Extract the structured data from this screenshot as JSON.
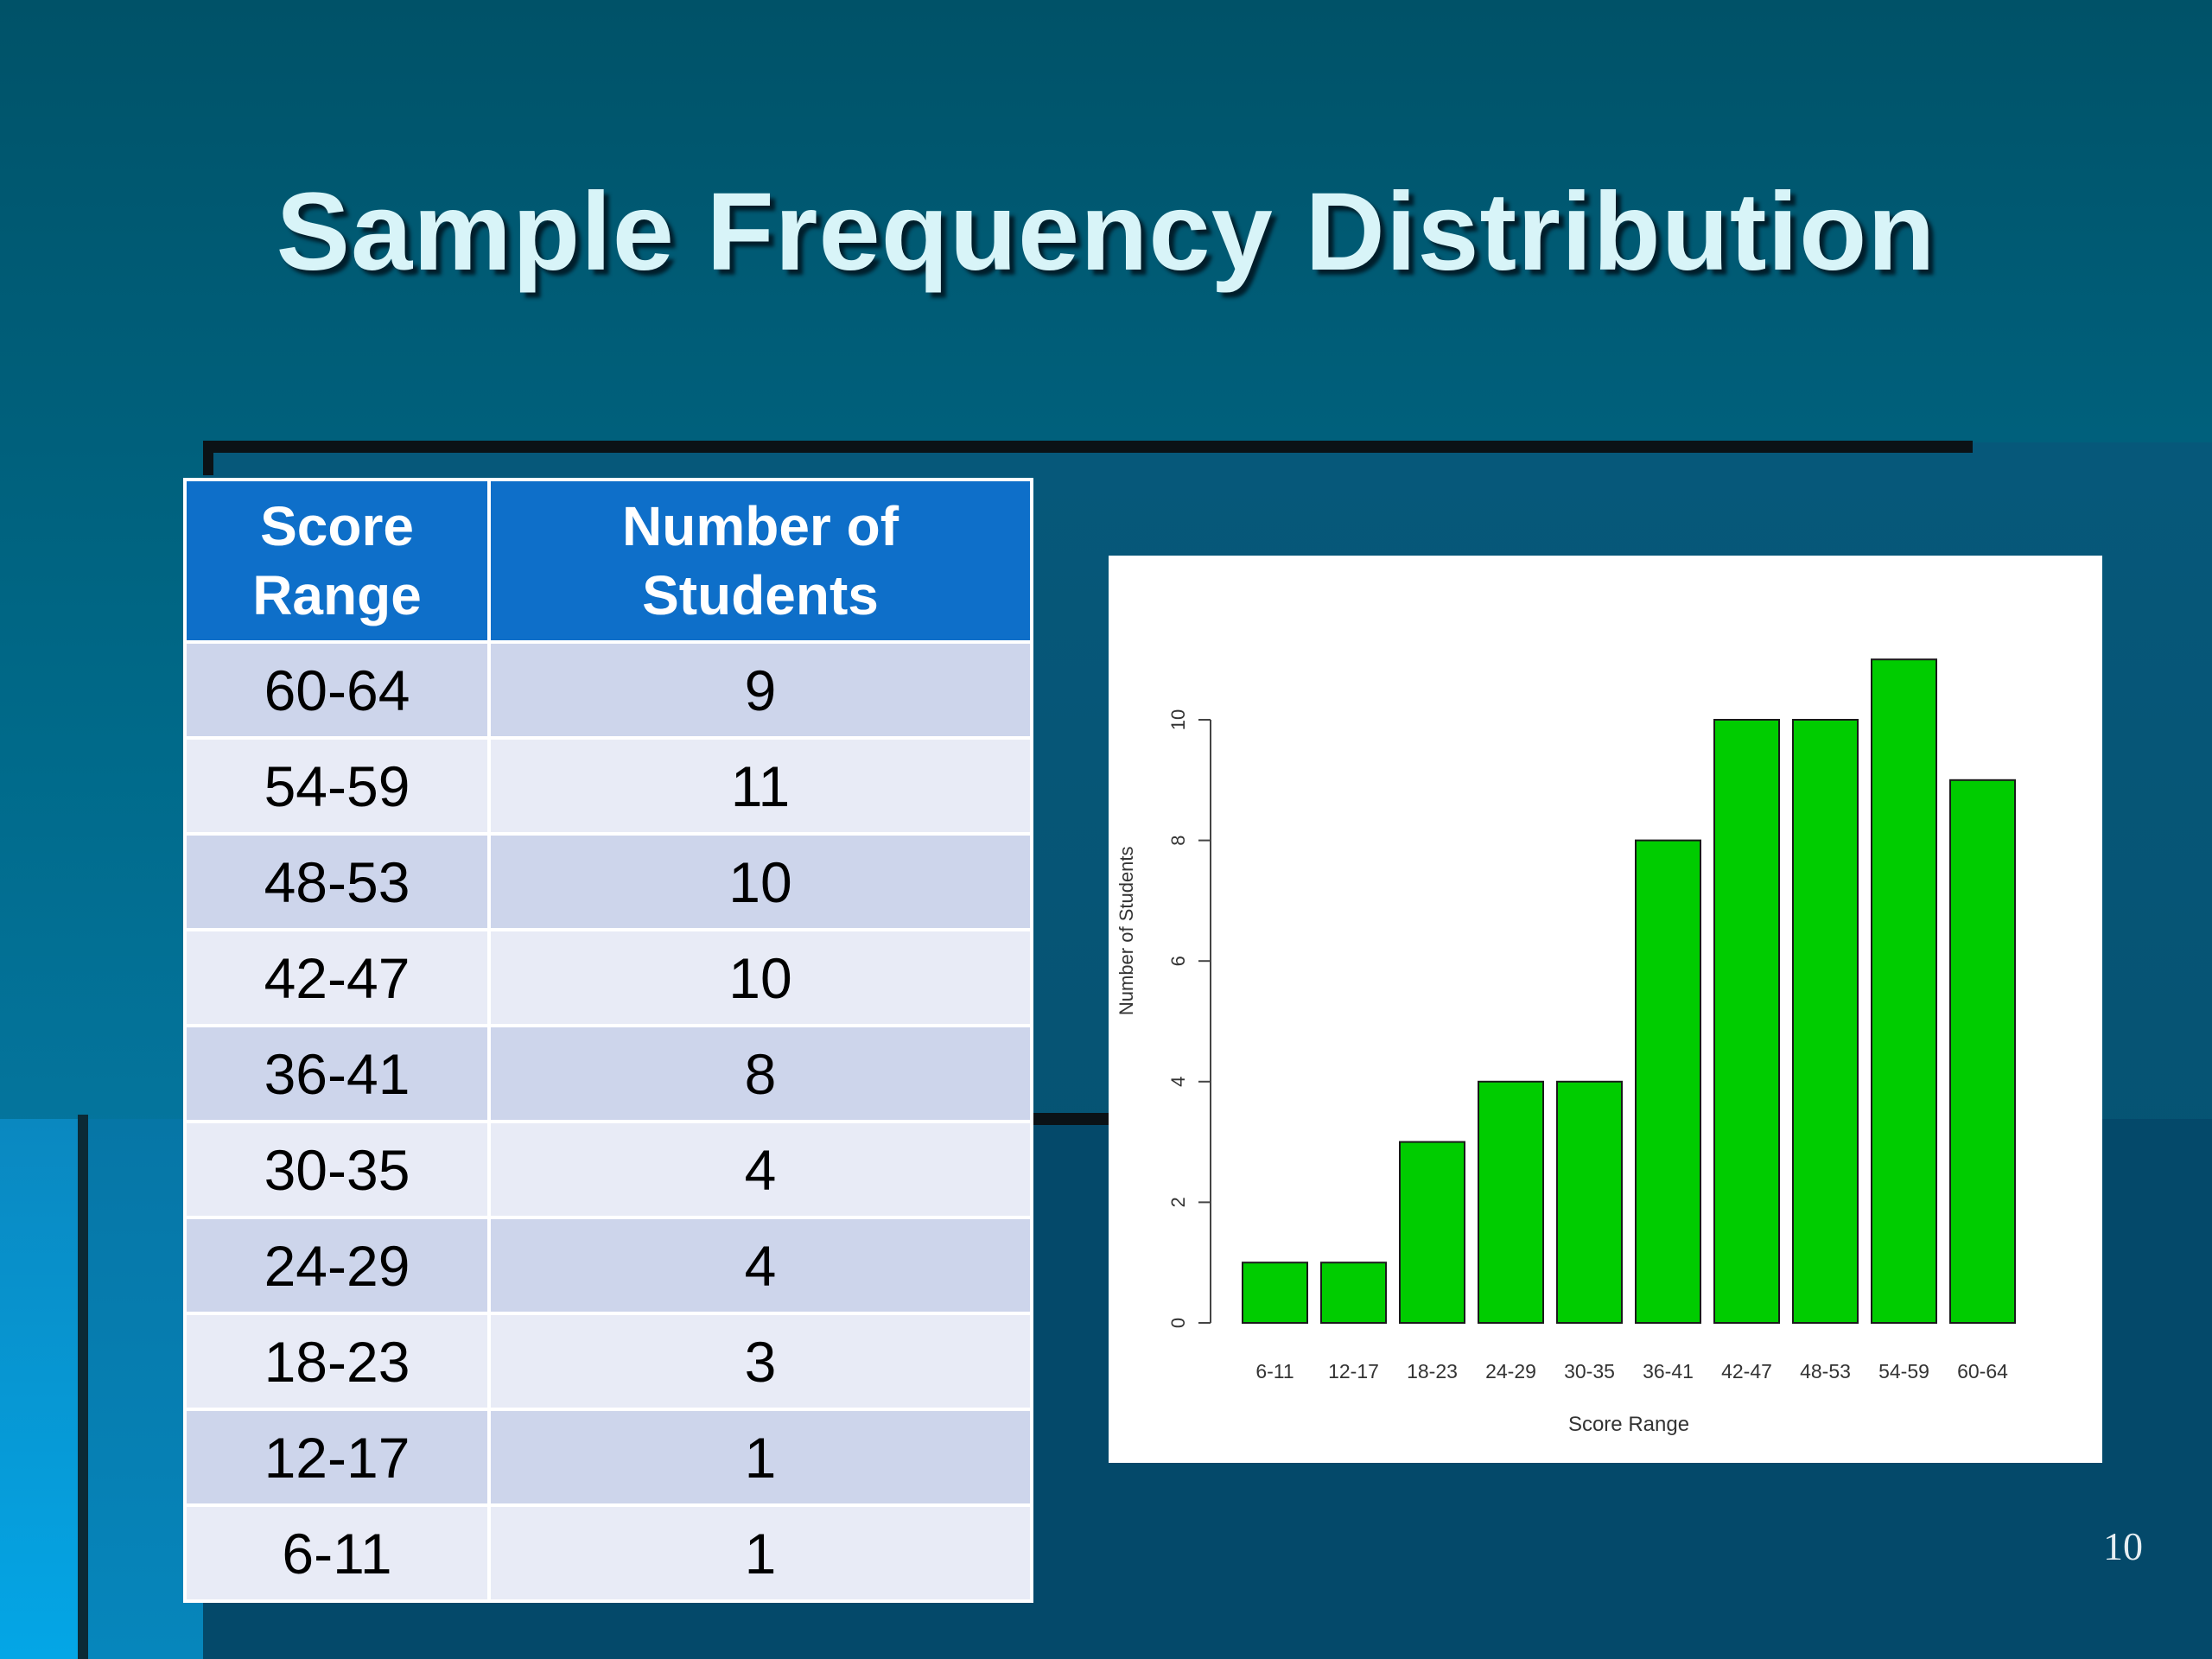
{
  "slide": {
    "title": "Sample Frequency Distribution",
    "page_number": "10"
  },
  "table": {
    "headers": [
      {
        "line1": "Score",
        "line2": "Range"
      },
      {
        "line1": "Number of",
        "line2": "Students"
      }
    ],
    "rows": [
      {
        "range": "60-64",
        "count": "9"
      },
      {
        "range": "54-59",
        "count": "11"
      },
      {
        "range": "48-53",
        "count": "10"
      },
      {
        "range": "42-47",
        "count": "10"
      },
      {
        "range": "36-41",
        "count": "8"
      },
      {
        "range": "30-35",
        "count": "4"
      },
      {
        "range": "24-29",
        "count": "4"
      },
      {
        "range": "18-23",
        "count": "3"
      },
      {
        "range": "12-17",
        "count": "1"
      },
      {
        "range": "6-11",
        "count": "1"
      }
    ]
  },
  "chart_data": {
    "type": "bar",
    "categories": [
      "6-11",
      "12-17",
      "18-23",
      "24-29",
      "30-35",
      "36-41",
      "42-47",
      "48-53",
      "54-59",
      "60-64"
    ],
    "values": [
      1,
      1,
      3,
      4,
      4,
      8,
      10,
      10,
      11,
      9
    ],
    "title": "",
    "xlabel": "Score Range",
    "ylabel": "Number of Students",
    "ylim": [
      0,
      11
    ],
    "yticks": [
      0,
      2,
      4,
      6,
      8,
      10
    ],
    "bar_color": "#00cc00",
    "grid": false,
    "legend": "none"
  },
  "colors": {
    "table_header": "#0e6fc9",
    "row_dark": "#cdd5eb",
    "row_light": "#e8ebf6",
    "title_text": "#d8f4f8"
  }
}
